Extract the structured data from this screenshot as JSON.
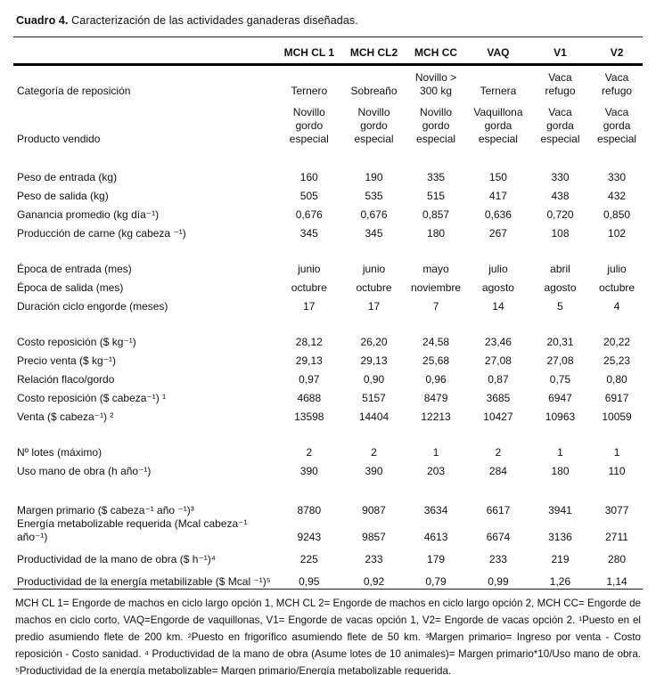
{
  "page": {
    "title_bold": "Cuadro 4.",
    "title_rest": " Caracterización de las actividades ganaderas diseñadas."
  },
  "table": {
    "column_headers": [
      "MCH CL 1",
      "MCH CL2",
      "MCH CC",
      "VAQ",
      "V1",
      "V2"
    ],
    "groups": [
      {
        "rows": [
          {
            "label": "Categoría de reposición",
            "values": [
              "Ternero",
              "Sobreaño",
              "Novillo >\n300 kg",
              "Ternera",
              "Vaca\nrefugo",
              "Vaca\nrefugo"
            ]
          },
          {
            "label": "Producto vendido",
            "values": [
              "Novillo\ngordo\nespecial",
              "Novillo\ngordo\nespecial",
              "Novillo\ngordo\nespecial",
              "Vaquillona\ngorda\nespecial",
              "Vaca\ngorda\nespecial",
              "Vaca\ngorda\nespecial"
            ]
          }
        ]
      },
      {
        "rows": [
          {
            "label": "Peso de entrada (kg)",
            "values": [
              "160",
              "190",
              "335",
              "150",
              "330",
              "330"
            ]
          },
          {
            "label": "Peso de salida (kg)",
            "values": [
              "505",
              "535",
              "515",
              "417",
              "438",
              "432"
            ]
          },
          {
            "label": "Ganancia promedio (kg día⁻¹)",
            "values": [
              "0,676",
              "0,676",
              "0,857",
              "0,636",
              "0,720",
              "0,850"
            ]
          },
          {
            "label": "Producción de carne (kg cabeza ⁻¹)",
            "values": [
              "345",
              "345",
              "180",
              "267",
              "108",
              "102"
            ]
          }
        ]
      },
      {
        "rows": [
          {
            "label": "Época de entrada (mes)",
            "values": [
              "junio",
              "junio",
              "mayo",
              "julio",
              "abril",
              "julio"
            ]
          },
          {
            "label": "Época de salida (mes)",
            "values": [
              "octubre",
              "octubre",
              "noviembre",
              "agosto",
              "agosto",
              "octubre"
            ]
          },
          {
            "label": "Duración ciclo engorde (meses)",
            "values": [
              "17",
              "17",
              "7",
              "14",
              "5",
              "4"
            ]
          }
        ]
      },
      {
        "rows": [
          {
            "label": "Costo reposición ($ kg⁻¹)",
            "values": [
              "28,12",
              "26,20",
              "24,58",
              "23,46",
              "20,31",
              "20,22"
            ]
          },
          {
            "label": "Precio venta ($ kg⁻¹)",
            "values": [
              "29,13",
              "29,13",
              "25,68",
              "27,08",
              "27,08",
              "25,23"
            ]
          },
          {
            "label": "Relación flaco/gordo",
            "values": [
              "0,97",
              "0,90",
              "0,96",
              "0,87",
              "0,75",
              "0,80"
            ]
          },
          {
            "label": "Costo reposición ($ cabeza⁻¹) ¹",
            "values": [
              "4688",
              "5157",
              "8479",
              "3685",
              "6947",
              "6917"
            ]
          },
          {
            "label": "Venta ($ cabeza⁻¹) ²",
            "values": [
              "13598",
              "14404",
              "12213",
              "10427",
              "10963",
              "10059"
            ]
          }
        ]
      },
      {
        "rows": [
          {
            "label": "Nº lotes (máximo)",
            "values": [
              "2",
              "2",
              "1",
              "2",
              "1",
              "1"
            ]
          },
          {
            "label": "Uso mano de obra (h año⁻¹)",
            "values": [
              "390",
              "390",
              "203",
              "284",
              "180",
              "110"
            ]
          }
        ]
      },
      {
        "rows": [
          {
            "label": "Margen primario ($  cabeza⁻¹ año ⁻¹)³",
            "values": [
              "8780",
              "9087",
              "3634",
              "6617",
              "3941",
              "3077"
            ]
          },
          {
            "label": "Energía metabolizable requerida (Mcal cabeza⁻¹ año⁻¹)",
            "values": [
              "9243",
              "9857",
              "4613",
              "6674",
              "3136",
              "2711"
            ]
          },
          {
            "label": "Productividad de la mano de obra ($ h⁻¹)⁴",
            "values": [
              "225",
              "233",
              "179",
              "233",
              "219",
              "280"
            ]
          },
          {
            "label": "Productividad de la energía metabilizable ($ Mcal ⁻¹)⁵",
            "values": [
              "0,95",
              "0,92",
              "0,79",
              "0,99",
              "1,26",
              "1,14"
            ]
          }
        ]
      }
    ]
  },
  "footnote": "MCH CL 1= Engorde de machos en ciclo largo opción 1,  MCH CL 2= Engorde de machos en ciclo largo opción 2, MCH CC= Engorde de machos en ciclo corto, VAQ=Engorde de vaquillonas, V1= Engorde de vacas opción 1, V2= Engorde de vacas opción 2. ¹Puesto en el predio asumiendo flete de 200 km. ²Puesto en frigorífico asumiendo flete de 50 km. ³Margen primario= Ingreso por venta - Costo reposición - Costo sanidad. ⁴ Productividad de la mano de obra (Asume lotes de 10 animales)= Margen primario*10/Uso mano de obra. ⁵Productividad de la energía metabolizable= Margen primario/Energía metabolizable requerida."
}
